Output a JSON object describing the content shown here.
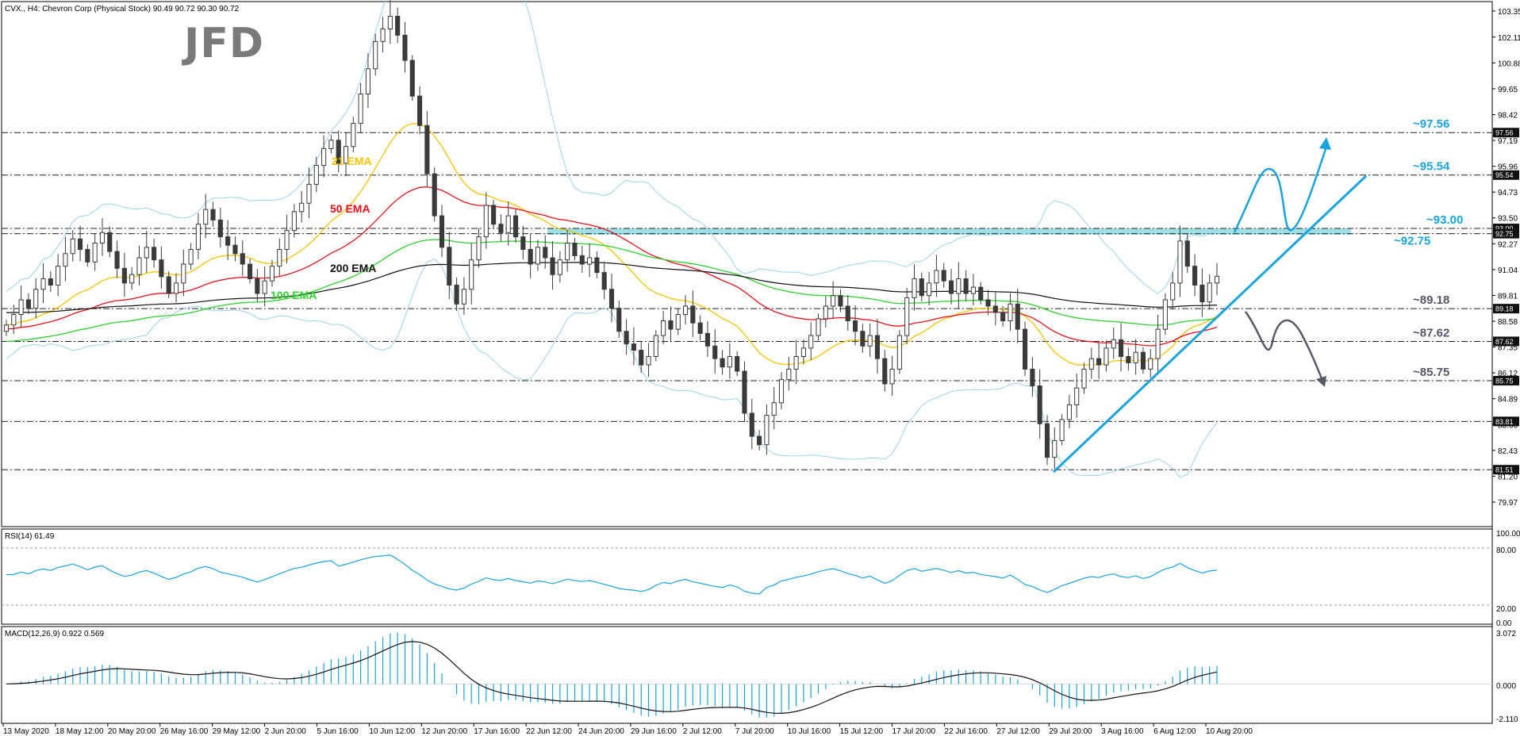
{
  "header": {
    "symbol_info": "CVX., H4:  Chevron Corp (Physical Stock)  90.49 90.72 90.30 90.72",
    "logo": "JFD"
  },
  "rsi_panel": {
    "label": "RSI(14) 61.49",
    "axis": [
      "100.00",
      "80.00",
      "20.00",
      "0.00"
    ]
  },
  "macd_panel": {
    "label": "MACD(12,26,9) 0.922 0.569",
    "axis": [
      "3.072",
      "0.000",
      "-2.110"
    ]
  },
  "colors": {
    "ema21": "#f5c400",
    "ema50": "#e8101b",
    "ema100": "#2fd02f",
    "ema200": "#111111",
    "bollinger": "#9bd3ee",
    "trend": "#1aa3dd",
    "zone": "#7fd6de",
    "level_text": "#1aa3dd",
    "level_text_dark": "#555566",
    "candle": "#3a3a3a"
  },
  "chart_data": [
    {
      "type": "candlestick",
      "title": "CVX., H4",
      "ylim": [
        78.8,
        103.8
      ],
      "price_axis": [
        "103.35",
        "102.11",
        "100.88",
        "99.65",
        "98.42",
        "97.19",
        "95.96",
        "94.73",
        "93.50",
        "92.27",
        "91.04",
        "89.81",
        "88.58",
        "87.35",
        "86.12",
        "84.89",
        "83.66",
        "82.43",
        "81.20",
        "79.97"
      ],
      "level_tags": [
        {
          "label": "97.56",
          "value": 97.56
        },
        {
          "label": "95.54",
          "value": 95.54
        },
        {
          "label": "93.00",
          "value": 93.0
        },
        {
          "label": "92.75",
          "value": 92.75
        },
        {
          "label": "89.18",
          "value": 89.18
        },
        {
          "label": "87.62",
          "value": 87.62
        },
        {
          "label": "85.75",
          "value": 85.75
        },
        {
          "label": "83.81",
          "value": 83.81
        },
        {
          "label": "81.51",
          "value": 81.51
        }
      ],
      "level_annotations": [
        {
          "text": "~97.56",
          "value": 97.56,
          "color": "level"
        },
        {
          "text": "~95.54",
          "value": 95.54,
          "color": "level"
        },
        {
          "text": "~93.00",
          "value": 93.0,
          "color": "level"
        },
        {
          "text": "~92.75",
          "value": 92.75,
          "color": "level"
        },
        {
          "text": "~89.18",
          "value": 89.18,
          "color": "dark"
        },
        {
          "text": "~87.62",
          "value": 87.62,
          "color": "dark"
        },
        {
          "text": "~85.75",
          "value": 85.75,
          "color": "dark"
        }
      ],
      "dashed_levels": [
        97.56,
        95.54,
        93.0,
        92.75,
        89.18,
        87.62,
        85.75,
        83.81,
        81.51
      ],
      "resistance_zone": [
        92.75,
        93.0
      ],
      "x_labels": [
        "13 May 2020",
        "18 May 12:00",
        "20 May 20:00",
        "26 May 16:00",
        "29 May 12:00",
        "2 Jun 20:00",
        "5 Jun 16:00",
        "10 Jun 12:00",
        "12 Jun 20:00",
        "17 Jun 16:00",
        "22 Jun 12:00",
        "24 Jun 20:00",
        "29 Jun 16:00",
        "2 Jul 12:00",
        "7 Jul 20:00",
        "10 Jul 16:00",
        "15 Jul 12:00",
        "17 Jul 20:00",
        "22 Jul 16:00",
        "27 Jul 12:00",
        "29 Jul 20:00",
        "3 Aug 16:00",
        "6 Aug 12:00",
        "10 Aug 20:00"
      ],
      "closes": [
        88.4,
        88.9,
        89.6,
        89.2,
        90.1,
        90.6,
        90.3,
        91.2,
        91.8,
        92.5,
        92.0,
        91.4,
        92.3,
        92.8,
        91.9,
        91.1,
        90.4,
        90.8,
        91.6,
        92.1,
        91.5,
        90.7,
        89.9,
        90.4,
        91.3,
        92.0,
        93.2,
        93.9,
        93.4,
        92.6,
        92.2,
        91.8,
        91.3,
        90.6,
        89.9,
        90.5,
        91.2,
        92.0,
        92.9,
        93.8,
        94.2,
        95.1,
        96.0,
        96.8,
        97.2,
        96.1,
        96.9,
        98.0,
        99.4,
        100.6,
        101.9,
        102.5,
        103.1,
        102.2,
        101.0,
        99.3,
        97.9,
        95.6,
        93.6,
        92.1,
        90.3,
        89.4,
        90.1,
        91.5,
        92.6,
        94.1,
        93.2,
        92.8,
        93.6,
        92.6,
        92.0,
        91.3,
        92.1,
        91.6,
        90.8,
        91.5,
        92.3,
        91.7,
        91.3,
        91.6,
        90.9,
        90.1,
        89.2,
        88.1,
        87.5,
        87.2,
        86.5,
        86.9,
        87.9,
        88.6,
        88.2,
        88.9,
        89.3,
        88.5,
        88.0,
        87.4,
        86.8,
        86.4,
        86.9,
        86.2,
        84.2,
        83.1,
        82.7,
        84.1,
        84.7,
        85.8,
        86.3,
        86.9,
        87.3,
        87.9,
        88.7,
        89.3,
        89.8,
        89.3,
        88.6,
        88.1,
        87.4,
        87.9,
        86.8,
        85.6,
        86.3,
        87.9,
        89.7,
        90.6,
        89.8,
        90.4,
        91.0,
        90.5,
        89.9,
        90.6,
        89.9,
        90.2,
        89.6,
        89.3,
        89.0,
        88.6,
        89.4,
        88.2,
        86.3,
        85.5,
        83.7,
        82.1,
        82.9,
        83.9,
        84.6,
        85.4,
        86.3,
        86.8,
        86.5,
        87.3,
        87.7,
        86.9,
        86.6,
        87.1,
        86.3,
        86.8,
        88.2,
        89.6,
        90.4,
        92.4,
        91.2,
        90.3,
        89.5,
        90.4,
        90.72
      ],
      "indicators": [
        {
          "name": "21 EMA",
          "color": "ema21"
        },
        {
          "name": "50 EMA",
          "color": "ema50"
        },
        {
          "name": "100 EMA",
          "color": "ema100"
        },
        {
          "name": "200 EMA",
          "color": "ema200"
        }
      ]
    },
    {
      "type": "line",
      "name": "RSI(14)",
      "ylim": [
        0,
        100
      ],
      "levels": [
        80,
        20
      ],
      "last": 61.49
    },
    {
      "type": "bar",
      "name": "MACD(12,26,9)",
      "ylim": [
        -2.11,
        3.072
      ],
      "last_macd": 0.922,
      "last_signal": 0.569
    }
  ]
}
